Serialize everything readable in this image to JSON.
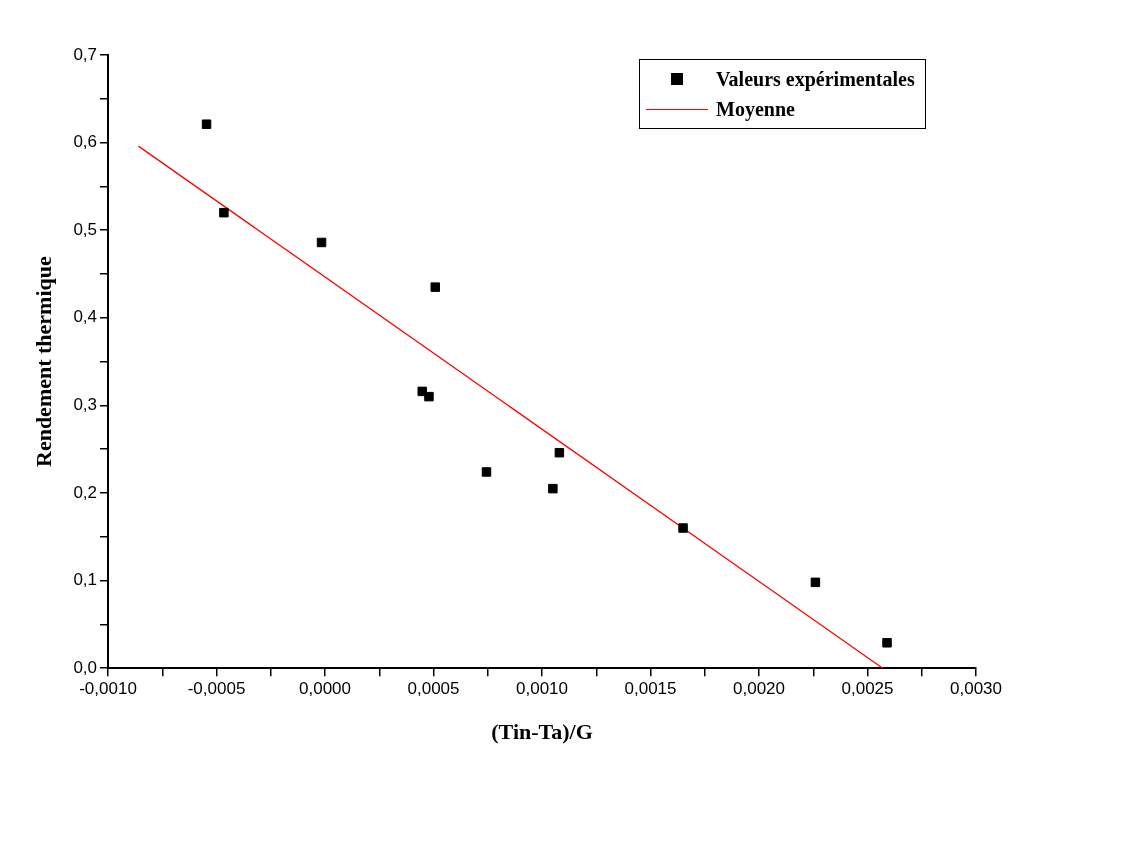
{
  "chart_data": {
    "type": "scatter",
    "xlabel": "(Tin-Ta)/G",
    "ylabel": "Rendement thermique",
    "xlim": [
      -0.001,
      0.003
    ],
    "ylim": [
      0,
      0.7
    ],
    "xticks": [
      {
        "value": -0.001,
        "label": "-0,0010"
      },
      {
        "value": -0.00075,
        "label": null
      },
      {
        "value": -0.0005,
        "label": "-0,0005"
      },
      {
        "value": -0.00025,
        "label": null
      },
      {
        "value": 0,
        "label": "0,0000"
      },
      {
        "value": 0.00025,
        "label": null
      },
      {
        "value": 0.0005,
        "label": "0,0005"
      },
      {
        "value": 0.00075,
        "label": null
      },
      {
        "value": 0.001,
        "label": "0,0010"
      },
      {
        "value": 0.00125,
        "label": null
      },
      {
        "value": 0.0015,
        "label": "0,0015"
      },
      {
        "value": 0.00175,
        "label": null
      },
      {
        "value": 0.002,
        "label": "0,0020"
      },
      {
        "value": 0.00225,
        "label": null
      },
      {
        "value": 0.0025,
        "label": "0,0025"
      },
      {
        "value": 0.00275,
        "label": null
      },
      {
        "value": 0.003,
        "label": "0,0030"
      }
    ],
    "yticks": [
      {
        "value": 0,
        "label": "0,0"
      },
      {
        "value": 0.05,
        "label": null
      },
      {
        "value": 0.1,
        "label": "0,1"
      },
      {
        "value": 0.15,
        "label": null
      },
      {
        "value": 0.2,
        "label": "0,2"
      },
      {
        "value": 0.25,
        "label": null
      },
      {
        "value": 0.3,
        "label": "0,3"
      },
      {
        "value": 0.35,
        "label": null
      },
      {
        "value": 0.4,
        "label": "0,4"
      },
      {
        "value": 0.45,
        "label": null
      },
      {
        "value": 0.5,
        "label": "0,5"
      },
      {
        "value": 0.55,
        "label": null
      },
      {
        "value": 0.6,
        "label": "0,6"
      },
      {
        "value": 0.65,
        "label": null
      },
      {
        "value": 0.7,
        "label": "0,7"
      }
    ],
    "grid": false,
    "legend": "top right",
    "series": [
      {
        "name": "Valeurs expérimentales",
        "marker": "square",
        "color": "#000000",
        "x": [
          -0.000546,
          -0.000466,
          -1.6e-05,
          0.000508,
          0.000448,
          0.000479,
          0.000744,
          0.00108,
          0.00105,
          0.00165,
          0.00226,
          0.00259
        ],
        "values": [
          0.621,
          0.52,
          0.486,
          0.435,
          0.316,
          0.31,
          0.224,
          0.246,
          0.205,
          0.16,
          0.098,
          0.029
        ]
      },
      {
        "name": "Moyenne",
        "type": "line",
        "marker": "none",
        "line_style": "solid",
        "color": "#ff0000",
        "x": [
          -0.00086,
          0.00257
        ],
        "values": [
          0.596,
          0
        ]
      }
    ]
  }
}
